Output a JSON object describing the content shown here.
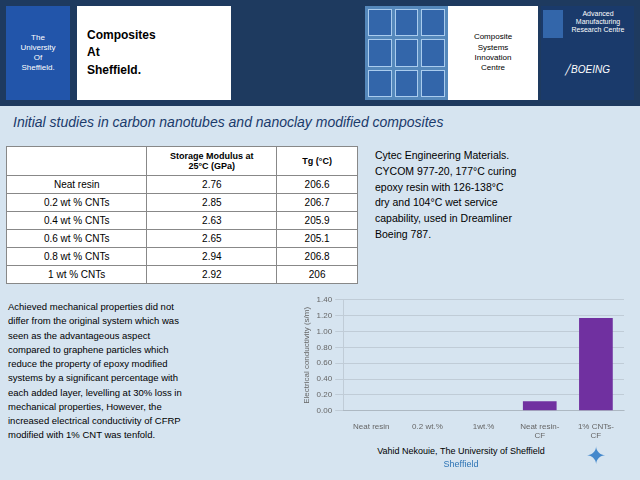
{
  "chart_data": {
    "type": "bar",
    "title": "Initial studies in carbon nanotubes and nanoclay modified composites",
    "categories": [
      "Neat resin",
      "0.2 wt.%",
      "1wt.%",
      "Neat resin-\nCF",
      "1% CNTs-\nCF"
    ],
    "values": [
      0.0,
      0.0,
      0.0,
      0.12,
      1.17
    ],
    "color": "#7030a0",
    "ylabel": "Electrical conductivity (s/m)",
    "ylim": [
      0,
      1.4
    ],
    "yticks": [
      {
        "value": 0.0,
        "label": "0.00"
      },
      {
        "value": 0.2,
        "label": "0.20"
      },
      {
        "value": 0.4,
        "label": "0.40"
      },
      {
        "value": 0.6,
        "label": "0.60"
      },
      {
        "value": 0.8,
        "label": "0.80"
      },
      {
        "value": 1.0,
        "label": "1.00"
      },
      {
        "value": 1.2,
        "label": "1.20"
      },
      {
        "value": 1.4,
        "label": "1.40"
      }
    ],
    "grid": true,
    "table": {
      "headers": [
        null,
        "Storage Modulus at\n25°C (GPa)",
        "Tg (°C)"
      ],
      "rows": [
        [
          "Neat resin",
          "2.76",
          "206.6"
        ],
        [
          "0.2 wt % CNTs",
          "2.85",
          "206.7"
        ],
        [
          "0.4 wt % CNTs",
          "2.63",
          "205.9"
        ],
        [
          "0.6 wt % CNTs",
          "2.65",
          "205.1"
        ],
        [
          "0.8 wt % CNTs",
          "2.94",
          "206.8"
        ],
        [
          "1 wt % CNTs",
          "2.92",
          "206"
        ]
      ]
    },
    "annotations": [
      "The",
      "University",
      "Of",
      "Sheffield.",
      "Composites\nAt\nSheffield.",
      "Composite\nSystems\nInnovation\nCentre",
      "Advanced Manufacturing Research Centre",
      "╱BOEING",
      "Cytec Engineering Materials.\nCYCOM 977-20, 177°C curing\nepoxy resin with 126-138°C\ndry and 104°C wet service\ncapability, used in Dreamliner\nBoeing 787.",
      "Achieved mechanical properties did not\ndiffer from the original system which was\nseen as the advantageous aspect\ncompared to graphene particles which\nreduce the property of epoxy modified\nsystems by a significant percentage with\neach added layer, levelling at 30% loss in\nmechanical properties, However, the\nincreased electrical conductivity of CFRP\nmodified with 1% CNT was tenfold.",
      "Vahid Nekouie, The University of Sheffield",
      "Sheffield",
      "✦"
    ]
  }
}
